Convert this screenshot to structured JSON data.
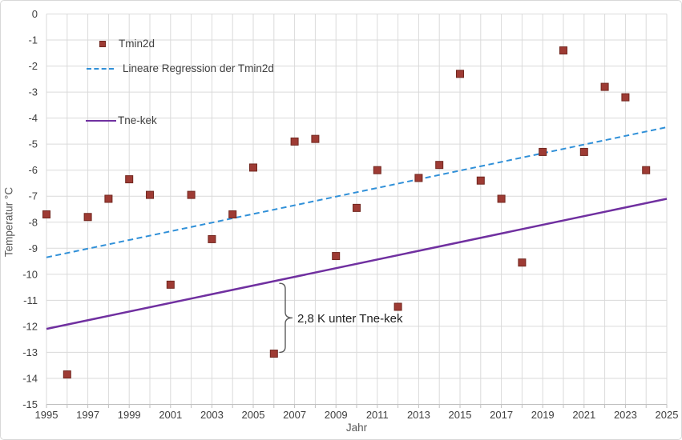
{
  "chart_data": {
    "type": "scatter",
    "title": "",
    "xlabel": "Jahr",
    "ylabel": "Temperatur °C",
    "xlim": [
      1995,
      2025
    ],
    "ylim": [
      -15,
      0
    ],
    "grid": true,
    "x_tick_labels": [
      1995,
      1997,
      1999,
      2001,
      2003,
      2005,
      2007,
      2009,
      2011,
      2013,
      2015,
      2017,
      2019,
      2021,
      2023,
      2025
    ],
    "y_tick_labels": [
      0,
      -1,
      -2,
      -3,
      -4,
      -5,
      -6,
      -7,
      -8,
      -9,
      -10,
      -11,
      -12,
      -13,
      -14,
      -15
    ],
    "series": [
      {
        "name": "Tmin2d",
        "type": "scatter",
        "marker": "square",
        "color": "#9e3b34",
        "border_color": "#71271f",
        "x": [
          1995,
          1996,
          1997,
          1998,
          1999,
          2000,
          2001,
          2002,
          2003,
          2004,
          2005,
          2006,
          2007,
          2008,
          2009,
          2010,
          2011,
          2012,
          2013,
          2014,
          2015,
          2016,
          2017,
          2018,
          2019,
          2020,
          2021,
          2022,
          2023,
          2024
        ],
        "y": [
          -7.7,
          -13.85,
          -7.8,
          -7.1,
          -6.35,
          -6.95,
          -10.4,
          -6.95,
          -8.65,
          -7.7,
          -5.9,
          -13.05,
          -4.9,
          -4.8,
          -9.3,
          -7.45,
          -6.0,
          -11.25,
          -6.3,
          -5.8,
          -2.3,
          -6.4,
          -7.1,
          -9.55,
          -5.3,
          -1.4,
          -5.3,
          -2.8,
          -3.2,
          -6.0
        ]
      },
      {
        "name": "Lineare Regression der Tmin2d",
        "type": "line",
        "dashed": true,
        "color": "#3090d8",
        "x": [
          1995,
          2025
        ],
        "y": [
          -9.35,
          -4.35
        ]
      },
      {
        "name": "Tne-kek",
        "type": "line",
        "dashed": false,
        "color": "#7030a0",
        "x": [
          1995,
          2025
        ],
        "y": [
          -12.1,
          -7.1
        ]
      }
    ],
    "annotation": {
      "text": "2,8 K unter Tne-kek",
      "brace_x_year": 2006.55,
      "brace_top_value": -10.35,
      "brace_bottom_value": -13.0,
      "text_color": "#1f1f1f",
      "brace_color": "#5a5a5a"
    },
    "legend_position": "inside-top-left",
    "colors": {
      "grid": "#dadada",
      "axis": "#bfbfbf",
      "tick_text": "#404040",
      "background": "#ffffff"
    }
  },
  "legend": {
    "items": [
      {
        "label": "Tmin2d"
      },
      {
        "label": "Lineare Regression der Tmin2d"
      },
      {
        "label": "Tne-kek"
      }
    ]
  },
  "axes": {
    "x_title": "Jahr",
    "y_title": "Temperatur °C"
  }
}
